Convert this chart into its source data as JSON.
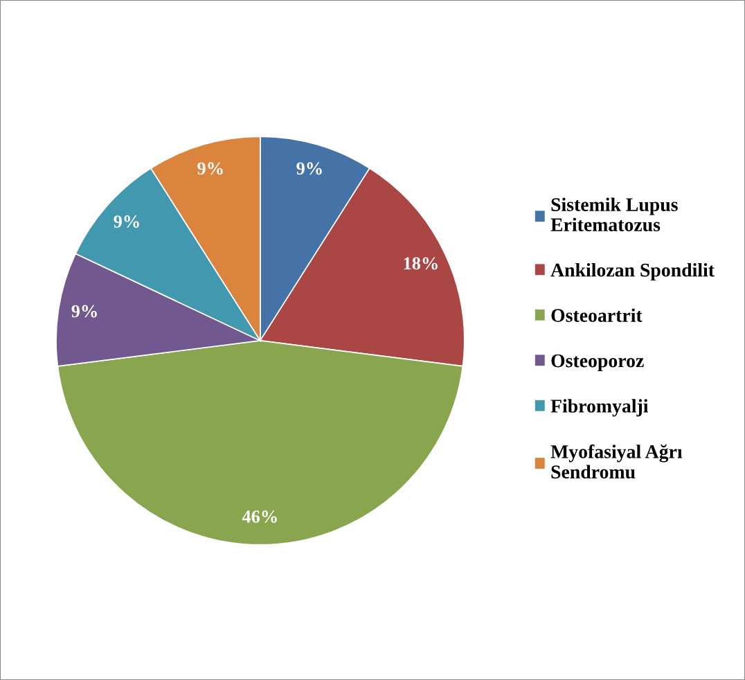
{
  "chart_data": {
    "type": "pie",
    "categories": [
      "Sistemik Lupus Eritematozus",
      "Ankilozan Spondilit",
      "Osteoartrit",
      "Osteoporoz",
      "Fibromyalji",
      "Myofasiyal Ağrı Sendromu"
    ],
    "values": [
      9,
      18,
      46,
      9,
      9,
      9
    ],
    "colors": [
      "#4572a7",
      "#aa4643",
      "#89a54e",
      "#71588f",
      "#4198af",
      "#db843d"
    ],
    "value_labels": [
      "9%",
      "18%",
      "46%",
      "9%",
      "9%",
      "9%"
    ],
    "legend": "right"
  }
}
